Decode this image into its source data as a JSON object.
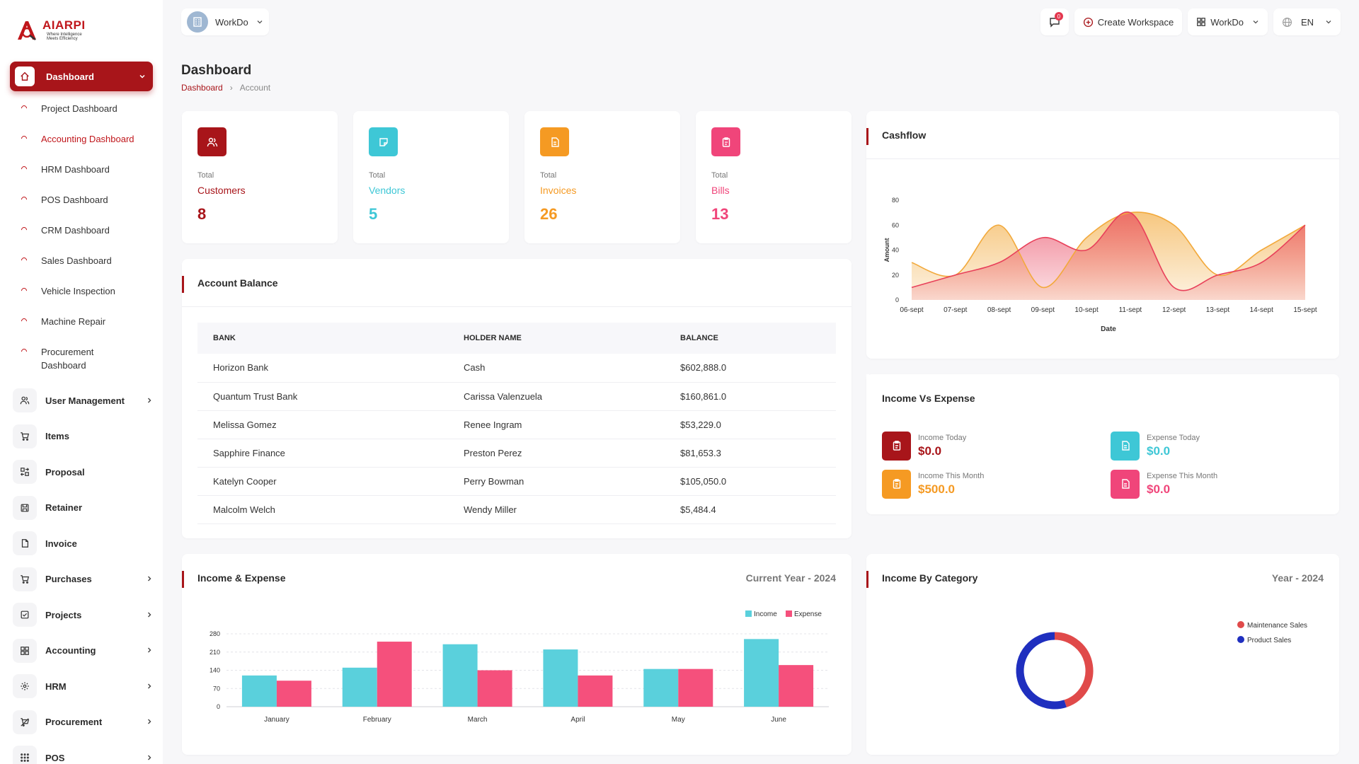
{
  "brand": {
    "name": "AIARPI",
    "tagline_1": "Where Intelligence",
    "tagline_2": "Meets Efficiency"
  },
  "sidebar": {
    "active": {
      "label": "Dashboard"
    },
    "sub_items": [
      {
        "label": "Project Dashboard"
      },
      {
        "label": "Accounting Dashboard"
      },
      {
        "label": "HRM Dashboard"
      },
      {
        "label": "POS Dashboard"
      },
      {
        "label": "CRM Dashboard"
      },
      {
        "label": "Sales Dashboard"
      },
      {
        "label": "Vehicle Inspection"
      },
      {
        "label": "Machine Repair"
      },
      {
        "label": "Procurement Dashboard"
      }
    ],
    "items": [
      {
        "label": "User Management",
        "icon": "users-icon",
        "chevron": true
      },
      {
        "label": "Items",
        "icon": "cart-icon",
        "chevron": false
      },
      {
        "label": "Proposal",
        "icon": "swap-icon",
        "chevron": false
      },
      {
        "label": "Retainer",
        "icon": "save-icon",
        "chevron": false
      },
      {
        "label": "Invoice",
        "icon": "file-icon",
        "chevron": false
      },
      {
        "label": "Purchases",
        "icon": "cart-icon",
        "chevron": true
      },
      {
        "label": "Projects",
        "icon": "checkbox-icon",
        "chevron": true
      },
      {
        "label": "Accounting",
        "icon": "grid-icon",
        "chevron": true
      },
      {
        "label": "HRM",
        "icon": "settings-icon",
        "chevron": true
      },
      {
        "label": "Procurement",
        "icon": "cart-off-icon",
        "chevron": true
      },
      {
        "label": "POS",
        "icon": "dots-grid-icon",
        "chevron": true
      }
    ]
  },
  "topbar": {
    "workspace": "WorkDo",
    "notifications_count": "0",
    "create_workspace": "Create Workspace",
    "workspace_menu": "WorkDo",
    "language": "EN"
  },
  "page": {
    "title": "Dashboard",
    "breadcrumb_home": "Dashboard",
    "breadcrumb_current": "Account"
  },
  "stats": [
    {
      "small": "Total",
      "name": "Customers",
      "value": "8",
      "color": "#a8151a",
      "icon": "users-icon"
    },
    {
      "small": "Total",
      "name": "Vendors",
      "value": "5",
      "color": "#3ec7d6",
      "icon": "note-icon"
    },
    {
      "small": "Total",
      "name": "Invoices",
      "value": "26",
      "color": "#f59a23",
      "icon": "file-invoice-icon"
    },
    {
      "small": "Total",
      "name": "Bills",
      "value": "13",
      "color": "#f0457a",
      "icon": "clipboard-icon"
    }
  ],
  "account_balance": {
    "title": "Account Balance",
    "columns": [
      "BANK",
      "HOLDER NAME",
      "BALANCE"
    ],
    "rows": [
      [
        "Horizon Bank",
        "Cash",
        "$602,888.0"
      ],
      [
        "Quantum Trust Bank",
        "Carissa Valenzuela",
        "$160,861.0"
      ],
      [
        "Melissa Gomez",
        "Renee Ingram",
        "$53,229.0"
      ],
      [
        "Sapphire Finance",
        "Preston Perez",
        "$81,653.3"
      ],
      [
        "Katelyn Cooper",
        "Perry Bowman",
        "$105,050.0"
      ],
      [
        "Malcolm Welch",
        "Wendy Miller",
        "$5,484.4"
      ]
    ]
  },
  "cashflow": {
    "title": "Cashflow"
  },
  "income_vs_expense": {
    "title": "Income Vs Expense",
    "items": [
      {
        "label": "Income Today",
        "value": "$0.0",
        "color": "#a8151a",
        "icon": "clipboard-icon"
      },
      {
        "label": "Expense Today",
        "value": "$0.0",
        "color": "#3ec7d6",
        "icon": "file-icon"
      },
      {
        "label": "Income This Month",
        "value": "$500.0",
        "color": "#f59a23",
        "icon": "clipboard-icon"
      },
      {
        "label": "Expense This Month",
        "value": "$0.0",
        "color": "#f0457a",
        "icon": "file-icon"
      }
    ]
  },
  "income_expense": {
    "title": "Income & Expense",
    "period": "Current Year - 2024"
  },
  "income_by_category": {
    "title": "Income By Category",
    "period": "Year - 2024"
  },
  "chart_data": [
    {
      "id": "cashflow",
      "type": "area",
      "title": "",
      "xlabel": "Date",
      "ylabel": "Amount",
      "categories": [
        "06-sept",
        "07-sept",
        "08-sept",
        "09-sept",
        "10-sept",
        "11-sept",
        "12-sept",
        "13-sept",
        "14-sept",
        "15-sept"
      ],
      "series": [
        {
          "values": [
            30,
            20,
            60,
            10,
            50,
            70,
            60,
            20,
            40,
            60
          ],
          "color": "#f2a93b"
        },
        {
          "values": [
            10,
            20,
            30,
            50,
            40,
            70,
            10,
            20,
            30,
            60
          ],
          "color": "#e8405a"
        }
      ],
      "ylim": [
        0,
        80
      ],
      "yticks": [
        0,
        20,
        40,
        60,
        80
      ],
      "grid": false
    },
    {
      "id": "income_expense",
      "type": "bar",
      "title": "",
      "categories": [
        "January",
        "February",
        "March",
        "April",
        "May",
        "June"
      ],
      "series": [
        {
          "name": "Income",
          "values": [
            120,
            150,
            240,
            220,
            145,
            260
          ],
          "color": "#5ad0dc"
        },
        {
          "name": "Expense",
          "values": [
            100,
            250,
            140,
            120,
            145,
            160
          ],
          "color": "#f5507c"
        }
      ],
      "ylim": [
        0,
        280
      ],
      "yticks": [
        0,
        70,
        140,
        210,
        280
      ],
      "legend": "top-right",
      "grid": true
    },
    {
      "id": "income_by_category",
      "type": "pie",
      "title": "",
      "labels": [
        "Maintenance Sales",
        "Product Sales"
      ],
      "values": [
        45,
        55
      ],
      "colors": [
        "#e04a4a",
        "#1f2fbf"
      ],
      "legend": "right"
    }
  ]
}
